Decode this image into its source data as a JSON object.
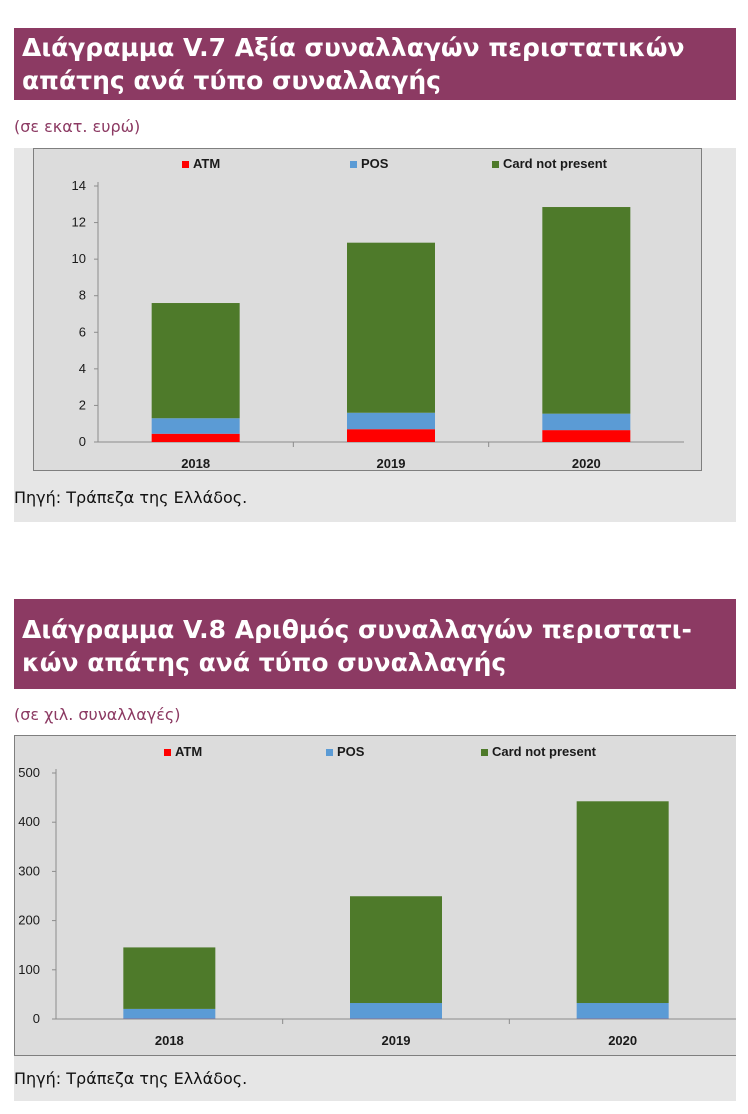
{
  "charts": [
    {
      "title_line1": "Διάγραμμα V.7 Αξία συναλλαγών περιστατικών",
      "title_line2": "απάτης ανά τύπο συναλλαγής",
      "unit_note": "(σε εκατ. ευρώ)",
      "source": "Πηγή: Τράπεζα της Ελλάδος."
    },
    {
      "title_line1": "Διάγραμμα V.8 Αριθμός συναλλαγών περιστατι-",
      "title_line2": "κών απάτης ανά τύπο συναλλαγής",
      "unit_note": "(σε χιλ. συναλλαγές)",
      "source": "Πηγή: Τράπεζα της Ελλάδος."
    }
  ],
  "colors": {
    "ATM": "#ff0000",
    "POS": "#5b9bd5",
    "Card not present": "#4e7a2a",
    "banner": "#8c3a63"
  },
  "chart_data": [
    {
      "type": "bar",
      "stacked": true,
      "title": "Διάγραμμα V.7 Αξία συναλλαγών περιστατικών απάτης ανά τύπο συναλλαγής",
      "ylabel": "(σε εκατ. ευρώ)",
      "categories": [
        "2018",
        "2019",
        "2020"
      ],
      "ylim": [
        0,
        14
      ],
      "yticks": [
        0,
        2,
        4,
        6,
        8,
        10,
        12,
        14
      ],
      "legend_position": "top",
      "series": [
        {
          "name": "ATM",
          "values": [
            0.45,
            0.7,
            0.65
          ]
        },
        {
          "name": "POS",
          "values": [
            0.85,
            0.9,
            0.9
          ]
        },
        {
          "name": "Card not present",
          "values": [
            6.3,
            9.3,
            11.3
          ]
        }
      ]
    },
    {
      "type": "bar",
      "stacked": true,
      "title": "Διάγραμμα V.8 Αριθμός συναλλαγών περιστατικών απάτης ανά τύπο συναλλαγής",
      "ylabel": "(σε χιλ. συναλλαγές)",
      "categories": [
        "2018",
        "2019",
        "2020"
      ],
      "ylim": [
        0,
        500
      ],
      "yticks": [
        0,
        100,
        200,
        300,
        400,
        500
      ],
      "legend_position": "top",
      "series": [
        {
          "name": "ATM",
          "values": [
            0.5,
            0.5,
            0.5
          ]
        },
        {
          "name": "POS",
          "values": [
            20,
            32,
            32
          ]
        },
        {
          "name": "Card not present",
          "values": [
            125,
            217,
            410
          ]
        }
      ]
    }
  ]
}
